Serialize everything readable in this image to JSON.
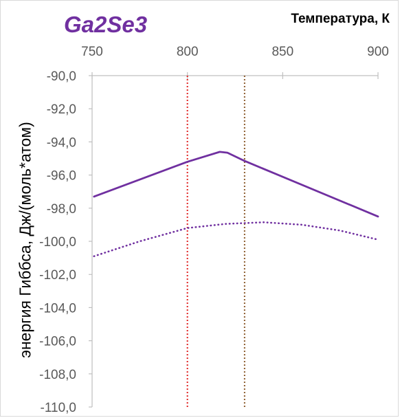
{
  "chart_data": {
    "type": "line",
    "title": "Ga2Se3",
    "xlabel": "Температура, К",
    "ylabel": "энергия Гиббса, Дж/(моль*атом)",
    "xlim": [
      750,
      900
    ],
    "ylim": [
      -110,
      -90
    ],
    "x_axis_position": "top",
    "x_ticks": [
      750,
      800,
      850,
      900
    ],
    "x_tick_labels": [
      "750",
      "800",
      "850",
      "900"
    ],
    "y_ticks": [
      -90,
      -92,
      -94,
      -96,
      -98,
      -100,
      -102,
      -104,
      -106,
      -108,
      -110
    ],
    "y_tick_labels": [
      "-90,0",
      "-92,0",
      "-94,0",
      "-96,0",
      "-98,0",
      "-100,0",
      "-102,0",
      "-104,0",
      "-106,0",
      "-108,0",
      "-110,0"
    ],
    "grid": false,
    "legend": "none",
    "series": [
      {
        "style": "solid",
        "color": "#7030a0",
        "points": [
          [
            751,
            -97.3
          ],
          [
            800,
            -95.2
          ],
          [
            817,
            -94.6
          ],
          [
            821,
            -94.65
          ],
          [
            830,
            -95.15
          ],
          [
            900,
            -98.5
          ]
        ]
      },
      {
        "style": "dotted",
        "color": "#7030a0",
        "points": [
          [
            751,
            -100.9
          ],
          [
            775,
            -100.0
          ],
          [
            800,
            -99.2
          ],
          [
            820,
            -98.95
          ],
          [
            840,
            -98.85
          ],
          [
            860,
            -99.0
          ],
          [
            880,
            -99.35
          ],
          [
            900,
            -99.9
          ]
        ]
      }
    ],
    "vertical_lines": [
      {
        "x": 800,
        "style": "dotted",
        "color": "#e02020"
      },
      {
        "x": 830,
        "style": "dotted",
        "color": "#8b5a2b"
      }
    ]
  }
}
